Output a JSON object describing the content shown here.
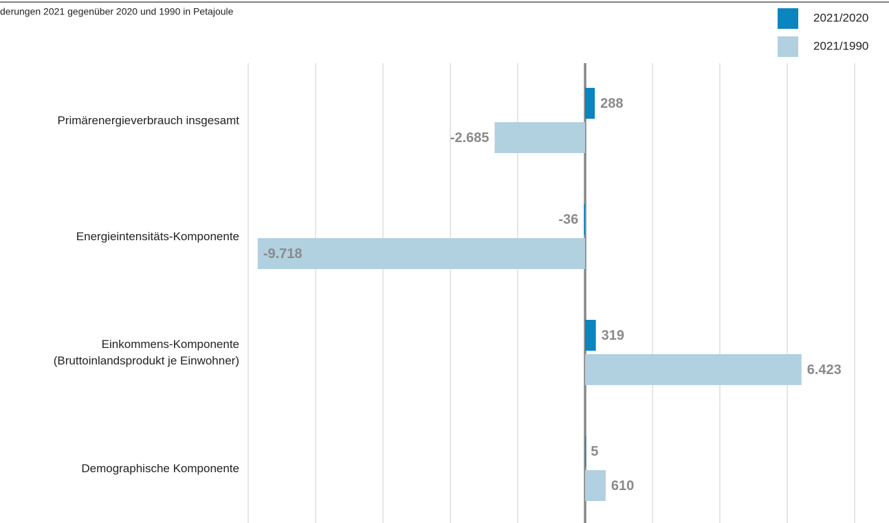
{
  "chart_data": {
    "type": "hbar",
    "title": "derungen 2021 gegenüber 2020 und 1990 in Petajoule",
    "categories": [
      "Primärenergieverbrauch insgesamt",
      "Energieintensitäts-Komponente",
      "Einkommens-Komponente\n(Bruttoinlandsprodukt je Einwohner)",
      "Demographische Komponente"
    ],
    "series": [
      {
        "name": "2021/2020",
        "color": "#0a85c0",
        "values": [
          288,
          -36,
          319,
          5
        ],
        "value_labels": [
          "288",
          "-36",
          "319",
          "5"
        ]
      },
      {
        "name": "2021/1990",
        "color": "#b1d0e0",
        "values": [
          -2685,
          -9718,
          6423,
          610
        ],
        "value_labels": [
          "-2.685",
          "-9.718",
          "6.423",
          "610"
        ]
      }
    ],
    "xlim": [
      -10000,
      8000
    ],
    "xticks": [
      -10000,
      -8000,
      -6000,
      -4000,
      -2000,
      0,
      2000,
      4000,
      6000,
      8000
    ],
    "grid": true,
    "legend": "top-right"
  }
}
